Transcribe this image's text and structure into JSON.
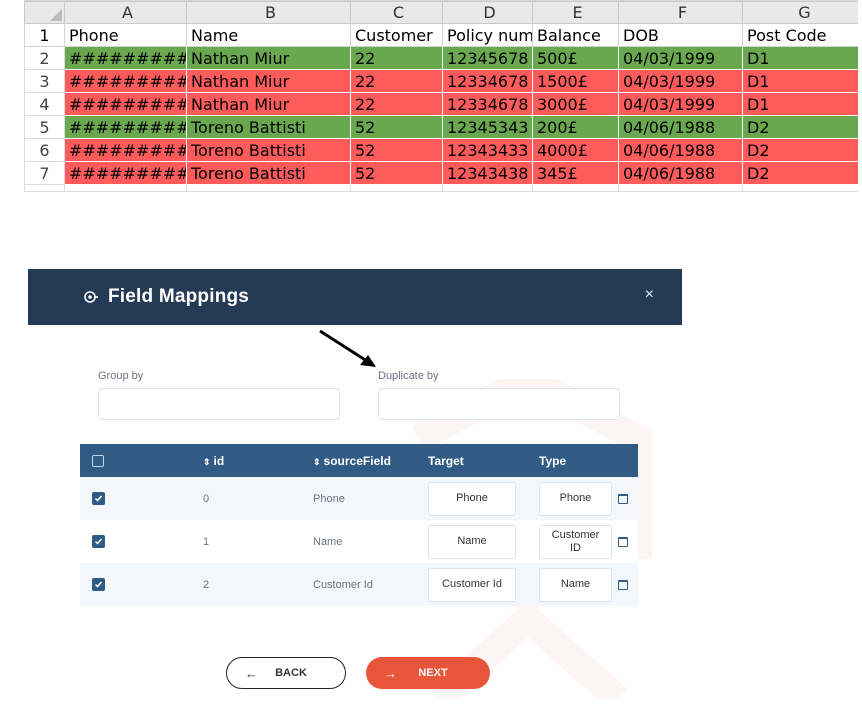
{
  "spreadsheet": {
    "column_letters": [
      "A",
      "B",
      "C",
      "D",
      "E",
      "F",
      "G"
    ],
    "row_numbers": [
      "1",
      "2",
      "3",
      "4",
      "5",
      "6",
      "7"
    ],
    "headers": [
      "Phone",
      "Name",
      "Customer",
      "Policy num",
      "Balance",
      "DOB",
      "Post Code"
    ],
    "rows": [
      {
        "color": "green",
        "cells": [
          "###########",
          "Nathan Miur",
          "22",
          "12345678",
          "500£",
          "04/03/1999",
          "D1"
        ]
      },
      {
        "color": "red",
        "cells": [
          "###########",
          "Nathan Miur",
          "22",
          "12334678",
          "1500£",
          "04/03/1999",
          "D1"
        ]
      },
      {
        "color": "red",
        "cells": [
          "###########",
          "Nathan Miur",
          "22",
          "12334678",
          "3000£",
          "04/03/1999",
          "D1"
        ]
      },
      {
        "color": "green",
        "cells": [
          "###########",
          "Toreno Battisti",
          "52",
          "12345343",
          "200£",
          "04/06/1988",
          "D2"
        ]
      },
      {
        "color": "red",
        "cells": [
          "###########",
          "Toreno Battisti",
          "52",
          "12343433",
          "4000£",
          "04/06/1988",
          "D2"
        ]
      },
      {
        "color": "red",
        "cells": [
          "###########",
          "Toreno Battisti",
          "52",
          "12343438",
          "345£",
          "04/06/1988",
          "D2"
        ]
      }
    ],
    "colors": {
      "green": "#6aa84f",
      "red": "#ff5b5b"
    }
  },
  "dialog": {
    "title": "Field Mappings",
    "close_glyph": "×",
    "group_by_label": "Group by",
    "group_by_value": "",
    "duplicate_by_label": "Duplicate by",
    "duplicate_by_value": "",
    "grid": {
      "headers": {
        "id": "id",
        "source": "sourceField",
        "target": "Target",
        "type": "Type"
      },
      "sort_glyph": "⇕",
      "rows": [
        {
          "id": "0",
          "source": "Phone",
          "target": "Phone",
          "type": "Phone"
        },
        {
          "id": "1",
          "source": "Name",
          "target": "Name",
          "type": "Customer ID"
        },
        {
          "id": "2",
          "source": "Customer Id",
          "target": "Customer Id",
          "type": "Name"
        }
      ]
    },
    "back_label": "BACK",
    "next_label": "NEXT",
    "back_arrow": "←",
    "next_arrow": "→",
    "header_color": "#243a55",
    "grid_header_color": "#2f5b85",
    "next_color": "#e9553a"
  }
}
